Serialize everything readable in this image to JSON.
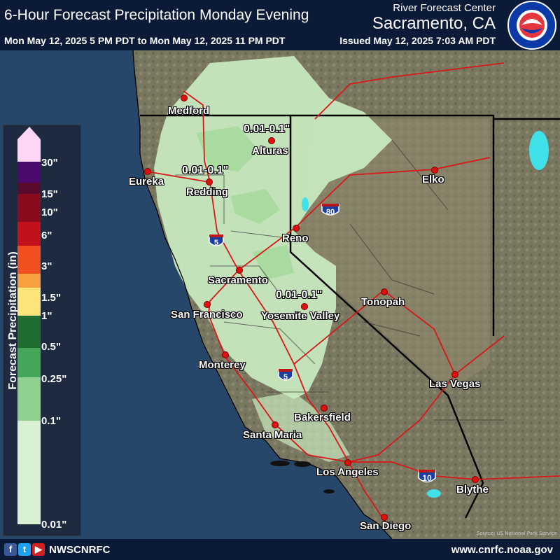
{
  "header": {
    "title": "6-Hour Forecast Precipitation Monday Evening",
    "center": "River Forecast Center",
    "office": "Sacramento, CA",
    "period": "Mon May 12, 2025 5 PM PDT to Mon May 12, 2025 11 PM PDT",
    "issued": "Issued May 12, 2025 7:03 AM PDT",
    "logo_text": "NATIONAL WEATHER SERVICE"
  },
  "legend": {
    "title": "Forecast Precipitation (in)",
    "ticks": [
      "30\"",
      "15\"",
      "10\"",
      "6\"",
      "3\"",
      "1.5\"",
      "1\"",
      "0.5\"",
      "0.25\"",
      "0.1\"",
      "0.01\""
    ],
    "colors": {
      "above_30": "#ffd6f5",
      "30": "#4b0a6e",
      "15": "#5a0a2c",
      "10": "#8a0a1e",
      "6": "#c2101c",
      "3": "#f05020",
      "1.5": "#f7a040",
      "1": "#fce37a",
      "0.5": "#1f6d2e",
      "0.25": "#45a65a",
      "0.1": "#8fd08e",
      "0.01": "#d8f0d2"
    }
  },
  "cities": [
    {
      "name": "Medford"
    },
    {
      "name": "Alturas"
    },
    {
      "name": "Eureka"
    },
    {
      "name": "Redding"
    },
    {
      "name": "Elko"
    },
    {
      "name": "Reno"
    },
    {
      "name": "Sacramento"
    },
    {
      "name": "San Francisco"
    },
    {
      "name": "Tonopah"
    },
    {
      "name": "Yosemite Valley"
    },
    {
      "name": "Monterey"
    },
    {
      "name": "Las Vegas"
    },
    {
      "name": "Bakersfield"
    },
    {
      "name": "Santa Maria"
    },
    {
      "name": "Los Angeles"
    },
    {
      "name": "Blythe"
    },
    {
      "name": "San Diego"
    }
  ],
  "amounts": [
    {
      "label": "0.01-0.1\""
    },
    {
      "label": "0.01-0.1\""
    },
    {
      "label": "0.01-0.1\""
    }
  ],
  "highways": [
    {
      "number": "5"
    },
    {
      "number": "80"
    },
    {
      "number": "5"
    },
    {
      "number": "10"
    }
  ],
  "footer": {
    "handle": "NWSCNRFC",
    "website": "www.cnrfc.noaa.gov",
    "credit": "Source: US National Park Service",
    "social_icons": [
      "facebook-icon",
      "twitter-icon",
      "youtube-icon"
    ]
  }
}
